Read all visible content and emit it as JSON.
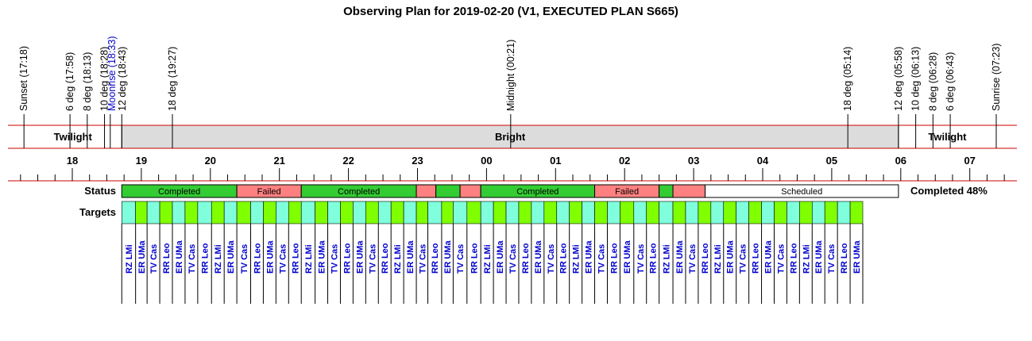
{
  "chart_data": {
    "type": "timeline",
    "title": "Observing Plan for 2019-02-20 (V1, EXECUTED PLAN S665)",
    "time_range": [
      "2019-02-20T17:00",
      "2019-02-21T07:40"
    ],
    "events": [
      {
        "label": "Sunset (17:18)",
        "time": "2019-02-20T17:18"
      },
      {
        "label": "6 deg (17:58)",
        "time": "2019-02-20T17:58"
      },
      {
        "label": "8 deg (18:13)",
        "time": "2019-02-20T18:13"
      },
      {
        "label": "10 deg (18:28)",
        "time": "2019-02-20T18:28"
      },
      {
        "label": "Moonrise (18:33)",
        "time": "2019-02-20T18:33",
        "color": "#0000cc"
      },
      {
        "label": "12 deg (18:43)",
        "time": "2019-02-20T18:43"
      },
      {
        "label": "18 deg (19:27)",
        "time": "2019-02-20T19:27"
      },
      {
        "label": "Midnight (00:21)",
        "time": "2019-02-21T00:21"
      },
      {
        "label": "18 deg (05:14)",
        "time": "2019-02-21T05:14"
      },
      {
        "label": "12 deg (05:58)",
        "time": "2019-02-21T05:58"
      },
      {
        "label": "10 deg (06:13)",
        "time": "2019-02-21T06:13"
      },
      {
        "label": "8 deg (06:28)",
        "time": "2019-02-21T06:28"
      },
      {
        "label": "6 deg (06:43)",
        "time": "2019-02-21T06:43"
      },
      {
        "label": "Sunrise (07:23)",
        "time": "2019-02-21T07:23"
      }
    ],
    "sky_bands": [
      {
        "label": "Twilight",
        "start": "2019-02-20T17:18",
        "end": "2019-02-20T18:43",
        "color": "#ffffff"
      },
      {
        "label": "Bright",
        "start": "2019-02-20T18:43",
        "end": "2019-02-21T05:58",
        "color": "#dcdcdc"
      },
      {
        "label": "Twilight",
        "start": "2019-02-21T05:58",
        "end": "2019-02-21T07:23",
        "color": "#ffffff"
      }
    ],
    "hour_ticks": [
      "18",
      "19",
      "20",
      "21",
      "22",
      "23",
      "00",
      "01",
      "02",
      "03",
      "04",
      "05",
      "06",
      "07"
    ],
    "hour_tick_times": [
      "2019-02-20T18:00",
      "2019-02-20T19:00",
      "2019-02-20T20:00",
      "2019-02-20T21:00",
      "2019-02-20T22:00",
      "2019-02-20T23:00",
      "2019-02-21T00:00",
      "2019-02-21T01:00",
      "2019-02-21T02:00",
      "2019-02-21T03:00",
      "2019-02-21T04:00",
      "2019-02-21T05:00",
      "2019-02-21T06:00",
      "2019-02-21T07:00"
    ],
    "status_label": "Status",
    "targets_label": "Targets",
    "completion_text": "Completed 48%",
    "status_segments": [
      {
        "label": "Completed",
        "start": "2019-02-20T18:43",
        "end": "2019-02-20T20:23",
        "status": "completed"
      },
      {
        "label": "Failed",
        "start": "2019-02-20T20:23",
        "end": "2019-02-20T21:19",
        "status": "failed"
      },
      {
        "label": "Completed",
        "start": "2019-02-20T21:19",
        "end": "2019-02-20T22:59",
        "status": "completed"
      },
      {
        "label": "",
        "start": "2019-02-20T22:59",
        "end": "2019-02-20T23:16",
        "status": "failed"
      },
      {
        "label": "",
        "start": "2019-02-20T23:16",
        "end": "2019-02-20T23:37",
        "status": "completed"
      },
      {
        "label": "",
        "start": "2019-02-20T23:37",
        "end": "2019-02-20T23:55",
        "status": "failed"
      },
      {
        "label": "Completed",
        "start": "2019-02-20T23:55",
        "end": "2019-02-21T01:34",
        "status": "completed"
      },
      {
        "label": "Failed",
        "start": "2019-02-21T01:34",
        "end": "2019-02-21T02:30",
        "status": "failed"
      },
      {
        "label": "",
        "start": "2019-02-21T02:30",
        "end": "2019-02-21T02:42",
        "status": "completed"
      },
      {
        "label": "",
        "start": "2019-02-21T02:42",
        "end": "2019-02-21T03:10",
        "status": "failed"
      },
      {
        "label": "Scheduled",
        "start": "2019-02-21T03:10",
        "end": "2019-02-21T05:58",
        "status": "scheduled"
      }
    ],
    "targets": [
      {
        "name": "RZ LMi",
        "start": "2019-02-20T18:43",
        "end": "2019-02-20T18:55",
        "color": "#80ffdd"
      },
      {
        "name": "ER UMa",
        "start": "2019-02-20T18:55",
        "end": "2019-02-20T19:05",
        "color": "#80ff00"
      },
      {
        "name": "TV Cas",
        "start": "2019-02-20T19:05",
        "end": "2019-02-20T19:16",
        "color": "#80ffdd"
      },
      {
        "name": "RR Leo",
        "start": "2019-02-20T19:16",
        "end": "2019-02-20T19:27",
        "color": "#80ff00"
      },
      {
        "name": "ER UMa",
        "start": "2019-02-20T19:27",
        "end": "2019-02-20T19:38",
        "color": "#80ffdd"
      },
      {
        "name": "TV Cas",
        "start": "2019-02-20T19:38",
        "end": "2019-02-20T19:49",
        "color": "#80ff00"
      },
      {
        "name": "RR Leo",
        "start": "2019-02-20T19:49",
        "end": "2019-02-20T20:01",
        "color": "#80ffdd"
      },
      {
        "name": "RZ LMi",
        "start": "2019-02-20T20:01",
        "end": "2019-02-20T20:12",
        "color": "#80ff00"
      },
      {
        "name": "ER UMa",
        "start": "2019-02-20T20:12",
        "end": "2019-02-20T20:23",
        "color": "#80ffdd"
      },
      {
        "name": "TV Cas",
        "start": "2019-02-20T20:23",
        "end": "2019-02-20T20:35",
        "color": "#80ff00"
      },
      {
        "name": "RR Leo",
        "start": "2019-02-20T20:35",
        "end": "2019-02-20T20:46",
        "color": "#80ffdd"
      },
      {
        "name": "ER UMa",
        "start": "2019-02-20T20:46",
        "end": "2019-02-20T20:57",
        "color": "#80ff00"
      },
      {
        "name": "TV Cas",
        "start": "2019-02-20T20:57",
        "end": "2019-02-20T21:08",
        "color": "#80ffdd"
      },
      {
        "name": "RR Leo",
        "start": "2019-02-20T21:08",
        "end": "2019-02-20T21:19",
        "color": "#80ff00"
      },
      {
        "name": "RZ LMi",
        "start": "2019-02-20T21:19",
        "end": "2019-02-20T21:31",
        "color": "#80ffdd"
      },
      {
        "name": "ER UMa",
        "start": "2019-02-20T21:31",
        "end": "2019-02-20T21:42",
        "color": "#80ff00"
      },
      {
        "name": "TV Cas",
        "start": "2019-02-20T21:42",
        "end": "2019-02-20T21:53",
        "color": "#80ffdd"
      },
      {
        "name": "RR Leo",
        "start": "2019-02-20T21:53",
        "end": "2019-02-20T22:04",
        "color": "#80ff00"
      },
      {
        "name": "ER UMa",
        "start": "2019-02-20T22:04",
        "end": "2019-02-20T22:15",
        "color": "#80ffdd"
      },
      {
        "name": "TV Cas",
        "start": "2019-02-20T22:15",
        "end": "2019-02-20T22:26",
        "color": "#80ff00"
      },
      {
        "name": "RR Leo",
        "start": "2019-02-20T22:26",
        "end": "2019-02-20T22:37",
        "color": "#80ffdd"
      },
      {
        "name": "RZ LMi",
        "start": "2019-02-20T22:37",
        "end": "2019-02-20T22:48",
        "color": "#80ff00"
      },
      {
        "name": "ER UMa",
        "start": "2019-02-20T22:48",
        "end": "2019-02-20T22:59",
        "color": "#80ffdd"
      },
      {
        "name": "TV Cas",
        "start": "2019-02-20T22:59",
        "end": "2019-02-20T23:09",
        "color": "#80ff00"
      },
      {
        "name": "RR Leo",
        "start": "2019-02-20T23:09",
        "end": "2019-02-20T23:21",
        "color": "#80ffdd"
      },
      {
        "name": "ER UMa",
        "start": "2019-02-20T23:21",
        "end": "2019-02-20T23:31",
        "color": "#80ff00"
      },
      {
        "name": "TV Cas",
        "start": "2019-02-20T23:31",
        "end": "2019-02-20T23:43",
        "color": "#80ffdd"
      },
      {
        "name": "RR Leo",
        "start": "2019-02-20T23:43",
        "end": "2019-02-20T23:55",
        "color": "#80ff00"
      },
      {
        "name": "RZ LMi",
        "start": "2019-02-20T23:55",
        "end": "2019-02-21T00:06",
        "color": "#80ffdd"
      },
      {
        "name": "ER UMa",
        "start": "2019-02-21T00:06",
        "end": "2019-02-21T00:17",
        "color": "#80ff00"
      },
      {
        "name": "TV Cas",
        "start": "2019-02-21T00:17",
        "end": "2019-02-21T00:28",
        "color": "#80ffdd"
      },
      {
        "name": "RR Leo",
        "start": "2019-02-21T00:28",
        "end": "2019-02-21T00:39",
        "color": "#80ff00"
      },
      {
        "name": "ER UMa",
        "start": "2019-02-21T00:39",
        "end": "2019-02-21T00:50",
        "color": "#80ffdd"
      },
      {
        "name": "TV Cas",
        "start": "2019-02-21T00:50",
        "end": "2019-02-21T01:01",
        "color": "#80ff00"
      },
      {
        "name": "RR Leo",
        "start": "2019-02-21T01:01",
        "end": "2019-02-21T01:12",
        "color": "#80ffdd"
      },
      {
        "name": "RZ LMi",
        "start": "2019-02-21T01:12",
        "end": "2019-02-21T01:23",
        "color": "#80ff00"
      },
      {
        "name": "ER UMa",
        "start": "2019-02-21T01:23",
        "end": "2019-02-21T01:34",
        "color": "#80ffdd"
      },
      {
        "name": "TV Cas",
        "start": "2019-02-21T01:34",
        "end": "2019-02-21T01:45",
        "color": "#80ff00"
      },
      {
        "name": "RR Leo",
        "start": "2019-02-21T01:45",
        "end": "2019-02-21T01:56",
        "color": "#80ffdd"
      },
      {
        "name": "ER UMa",
        "start": "2019-02-21T01:56",
        "end": "2019-02-21T02:08",
        "color": "#80ff00"
      },
      {
        "name": "TV Cas",
        "start": "2019-02-21T02:08",
        "end": "2019-02-21T02:19",
        "color": "#80ffdd"
      },
      {
        "name": "RR Leo",
        "start": "2019-02-21T02:19",
        "end": "2019-02-21T02:30",
        "color": "#80ff00"
      },
      {
        "name": "RZ LMi",
        "start": "2019-02-21T02:30",
        "end": "2019-02-21T02:42",
        "color": "#80ffdd"
      },
      {
        "name": "ER UMa",
        "start": "2019-02-21T02:42",
        "end": "2019-02-21T02:53",
        "color": "#80ff00"
      },
      {
        "name": "TV Cas",
        "start": "2019-02-21T02:53",
        "end": "2019-02-21T03:04",
        "color": "#80ffdd"
      },
      {
        "name": "RR Leo",
        "start": "2019-02-21T03:04",
        "end": "2019-02-21T03:15",
        "color": "#80ff00"
      },
      {
        "name": "RZ LMi",
        "start": "2019-02-21T03:15",
        "end": "2019-02-21T03:26",
        "color": "#80ffdd"
      },
      {
        "name": "ER UMa",
        "start": "2019-02-21T03:26",
        "end": "2019-02-21T03:37",
        "color": "#80ff00"
      },
      {
        "name": "TV Cas",
        "start": "2019-02-21T03:37",
        "end": "2019-02-21T03:48",
        "color": "#80ffdd"
      },
      {
        "name": "RR Leo",
        "start": "2019-02-21T03:48",
        "end": "2019-02-21T03:59",
        "color": "#80ff00"
      },
      {
        "name": "ER UMa",
        "start": "2019-02-21T03:59",
        "end": "2019-02-21T04:10",
        "color": "#80ffdd"
      },
      {
        "name": "TV Cas",
        "start": "2019-02-21T04:10",
        "end": "2019-02-21T04:21",
        "color": "#80ff00"
      },
      {
        "name": "RR Leo",
        "start": "2019-02-21T04:21",
        "end": "2019-02-21T04:32",
        "color": "#80ffdd"
      },
      {
        "name": "RZ LMi",
        "start": "2019-02-21T04:32",
        "end": "2019-02-21T04:43",
        "color": "#80ff00"
      },
      {
        "name": "ER UMa",
        "start": "2019-02-21T04:43",
        "end": "2019-02-21T04:54",
        "color": "#80ffdd"
      },
      {
        "name": "TV Cas",
        "start": "2019-02-21T04:54",
        "end": "2019-02-21T05:05",
        "color": "#80ff00"
      },
      {
        "name": "RR Leo",
        "start": "2019-02-21T05:05",
        "end": "2019-02-21T05:16",
        "color": "#80ffdd"
      },
      {
        "name": "ER UMa",
        "start": "2019-02-21T05:16",
        "end": "2019-02-21T05:27",
        "color": "#80ff00"
      }
    ],
    "colors": {
      "completed": "#33cc33",
      "failed": "#ff8080",
      "scheduled": "#ffffff",
      "axis_line": "#cc0000",
      "target_text": "#0000cc",
      "moonrise_text": "#0000cc"
    }
  }
}
